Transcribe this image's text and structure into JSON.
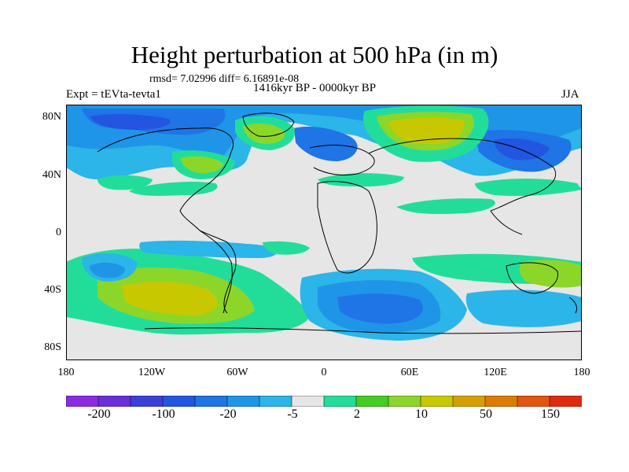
{
  "header": {
    "title": "Height perturbation at 500 hPa (in m)",
    "stats": "rmsd= 7.02996 diff= 6.16891e-08",
    "period": "1416kyr BP - 0000kyr BP",
    "experiment": "Expt = tEVta-tevta1",
    "season": "JJA"
  },
  "axes": {
    "lat_labels": [
      "80N",
      "40N",
      "0",
      "40S",
      "80S"
    ],
    "lon_labels": [
      "180",
      "120W",
      "60W",
      "0",
      "60E",
      "120E",
      "180"
    ]
  },
  "colorbar": {
    "labels": [
      "-200",
      "-100",
      "-20",
      "-5",
      "2",
      "10",
      "50",
      "150"
    ],
    "colors": [
      "#8a2be2",
      "#6a2fd8",
      "#3b3fd8",
      "#2255e0",
      "#1f74e6",
      "#1f95e8",
      "#2bb5e8",
      "#e6e6e6",
      "#22dd99",
      "#44cc22",
      "#8cd62a",
      "#c8c800",
      "#d4a000",
      "#dd7a00",
      "#e05510",
      "#e02a10"
    ],
    "gray": "#e6e6e6"
  },
  "field": {
    "positive_regions": [
      "North Atlantic / Greenland",
      "Eastern North America",
      "Northern Eurasia",
      "South Pacific",
      "Southern Australia",
      "Southern South America"
    ],
    "negative_regions": [
      "Arctic Canada",
      "North Pacific",
      "Northern Europe",
      "Siberia",
      "Southern Ocean (Indian sector)",
      "Southern Pacific"
    ]
  }
}
